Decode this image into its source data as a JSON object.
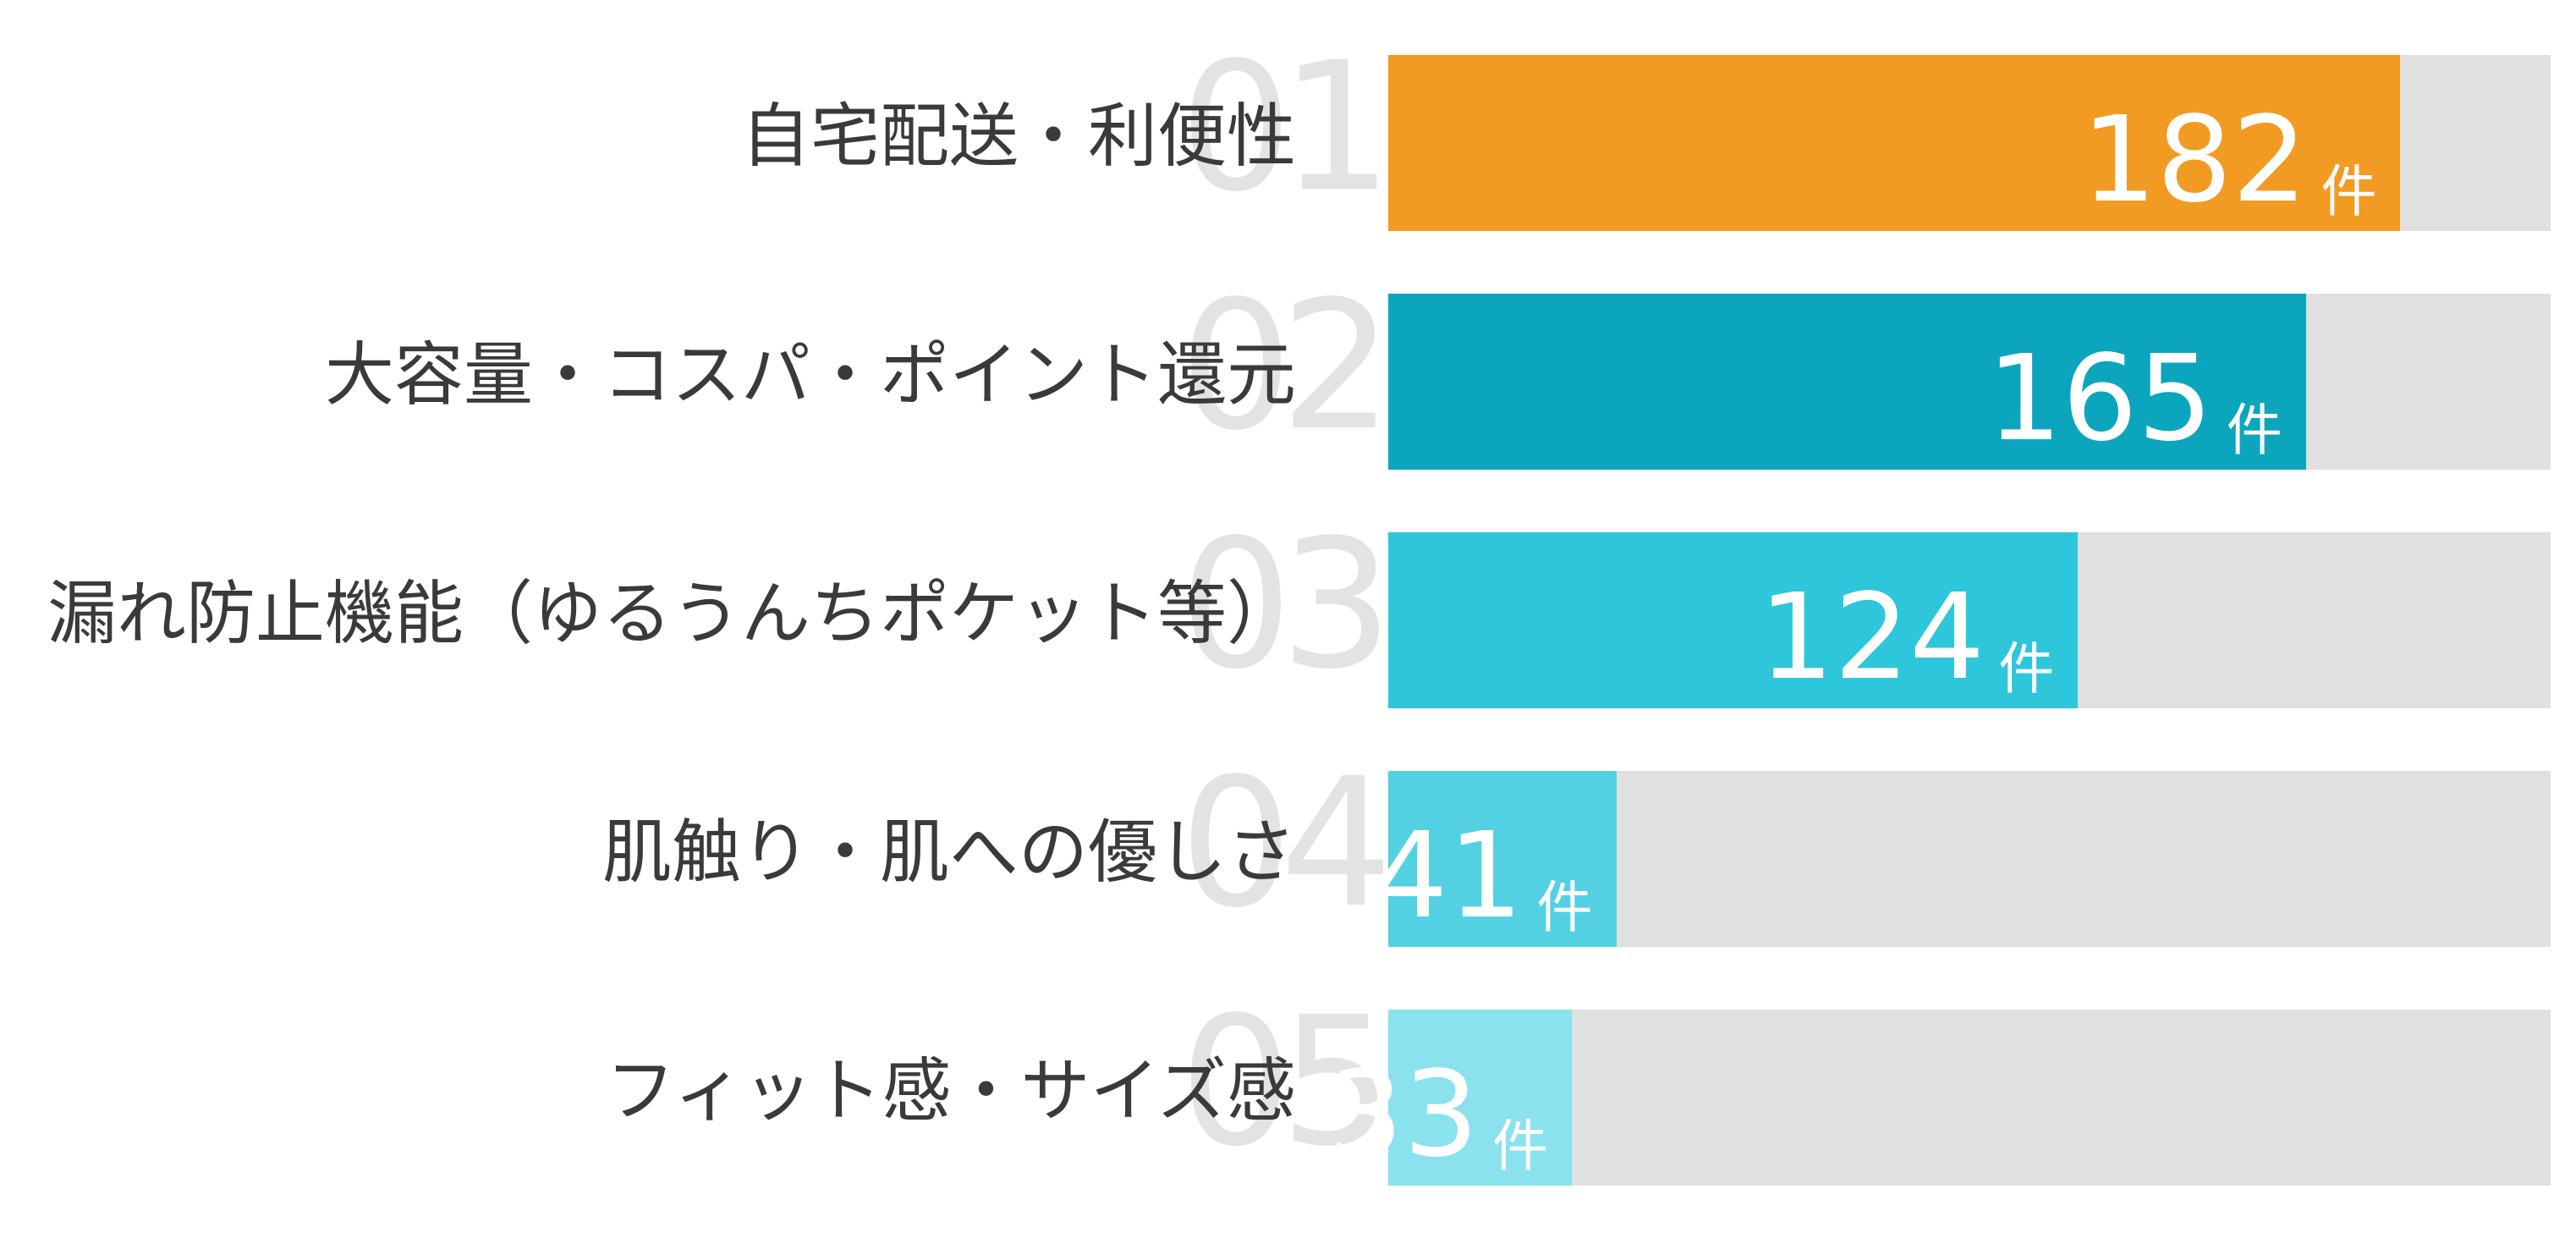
{
  "chart_data": {
    "type": "bar",
    "orientation": "horizontal",
    "title": "",
    "xlabel": "",
    "ylabel": "",
    "unit_suffix": "件",
    "axis_max_estimate": 209,
    "grid": false,
    "legend": "none",
    "categories": [
      "自宅配送・利便性",
      "大容量・コスパ・ポイント還元",
      "漏れ防止機能（ゆるうんちポケット等）",
      "肌触り・肌への優しさ",
      "フィット感・サイズ感"
    ],
    "values": [
      182,
      165,
      124,
      41,
      33
    ],
    "rows": [
      {
        "index": "01",
        "label": "自宅配送・利便性",
        "value": 182,
        "value_text": "182",
        "unit": "件",
        "color": "#f19b23"
      },
      {
        "index": "02",
        "label": "大容量・コスパ・ポイント還元",
        "value": 165,
        "value_text": "165",
        "unit": "件",
        "color": "#0ca5be"
      },
      {
        "index": "03",
        "label": "漏れ防止機能（ゆるうんちポケット等）",
        "value": 124,
        "value_text": "124",
        "unit": "件",
        "color": "#2ec6da"
      },
      {
        "index": "04",
        "label": "肌触り・肌への優しさ",
        "value": 41,
        "value_text": "41",
        "unit": "件",
        "color": "#53d1e3"
      },
      {
        "index": "05",
        "label": "フィット感・サイズ感",
        "value": 33,
        "value_text": "33",
        "unit": "件",
        "color": "#8ae2ee"
      }
    ],
    "colors": {
      "track": "#e0e0e0",
      "index_number": "#e3e3e3",
      "label_text": "#3a3a3a",
      "value_text": "#ffffff",
      "background": "#ffffff"
    }
  }
}
